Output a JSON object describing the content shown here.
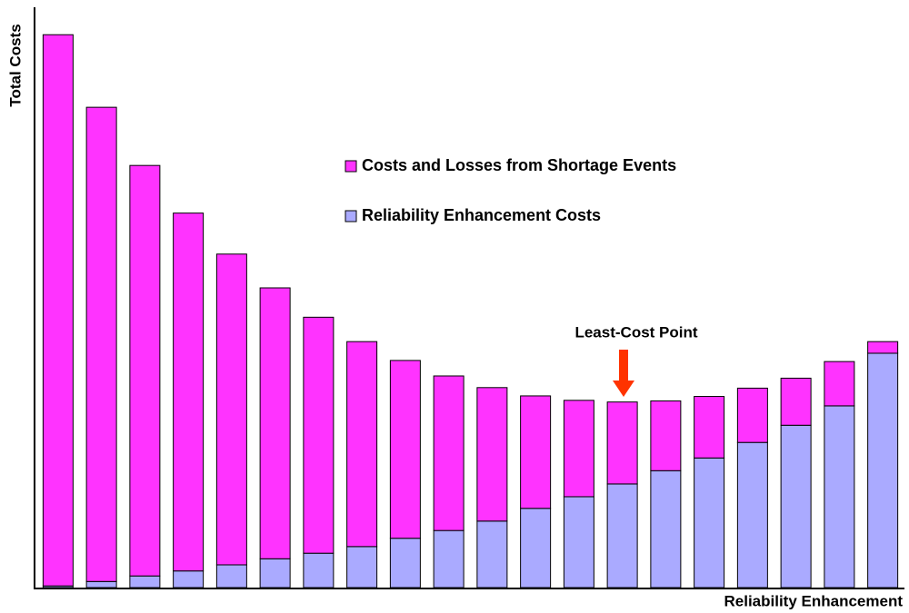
{
  "chart_data": {
    "type": "stacked-bar",
    "x_label": "Reliability Enhancement",
    "y_label": "Total Costs",
    "annotation": "Least-Cost Point",
    "categories": [
      null,
      null,
      null,
      null,
      null,
      null,
      null,
      null,
      null,
      null,
      null,
      null,
      null,
      null,
      null,
      null,
      null,
      null,
      null,
      null
    ],
    "series": [
      {
        "name": "Costs and Losses from Shortage Events",
        "color": "#ff33ff",
        "values": [
          99.5,
          85.6,
          74.1,
          64.6,
          56.1,
          48.9,
          42.6,
          37.0,
          32.1,
          27.9,
          24.1,
          20.3,
          17.4,
          14.8,
          12.6,
          11.1,
          9.8,
          8.5,
          8.0,
          2.1
        ]
      },
      {
        "name": "Reliability Enhancement Costs",
        "color": "#aaaaff",
        "values": [
          0.3,
          1.1,
          2.1,
          3.0,
          4.1,
          5.2,
          6.2,
          7.4,
          8.9,
          10.3,
          12.0,
          14.3,
          16.4,
          18.7,
          21.1,
          23.4,
          26.2,
          29.3,
          32.8,
          42.3
        ]
      }
    ],
    "ylim": [
      0,
      100
    ]
  }
}
